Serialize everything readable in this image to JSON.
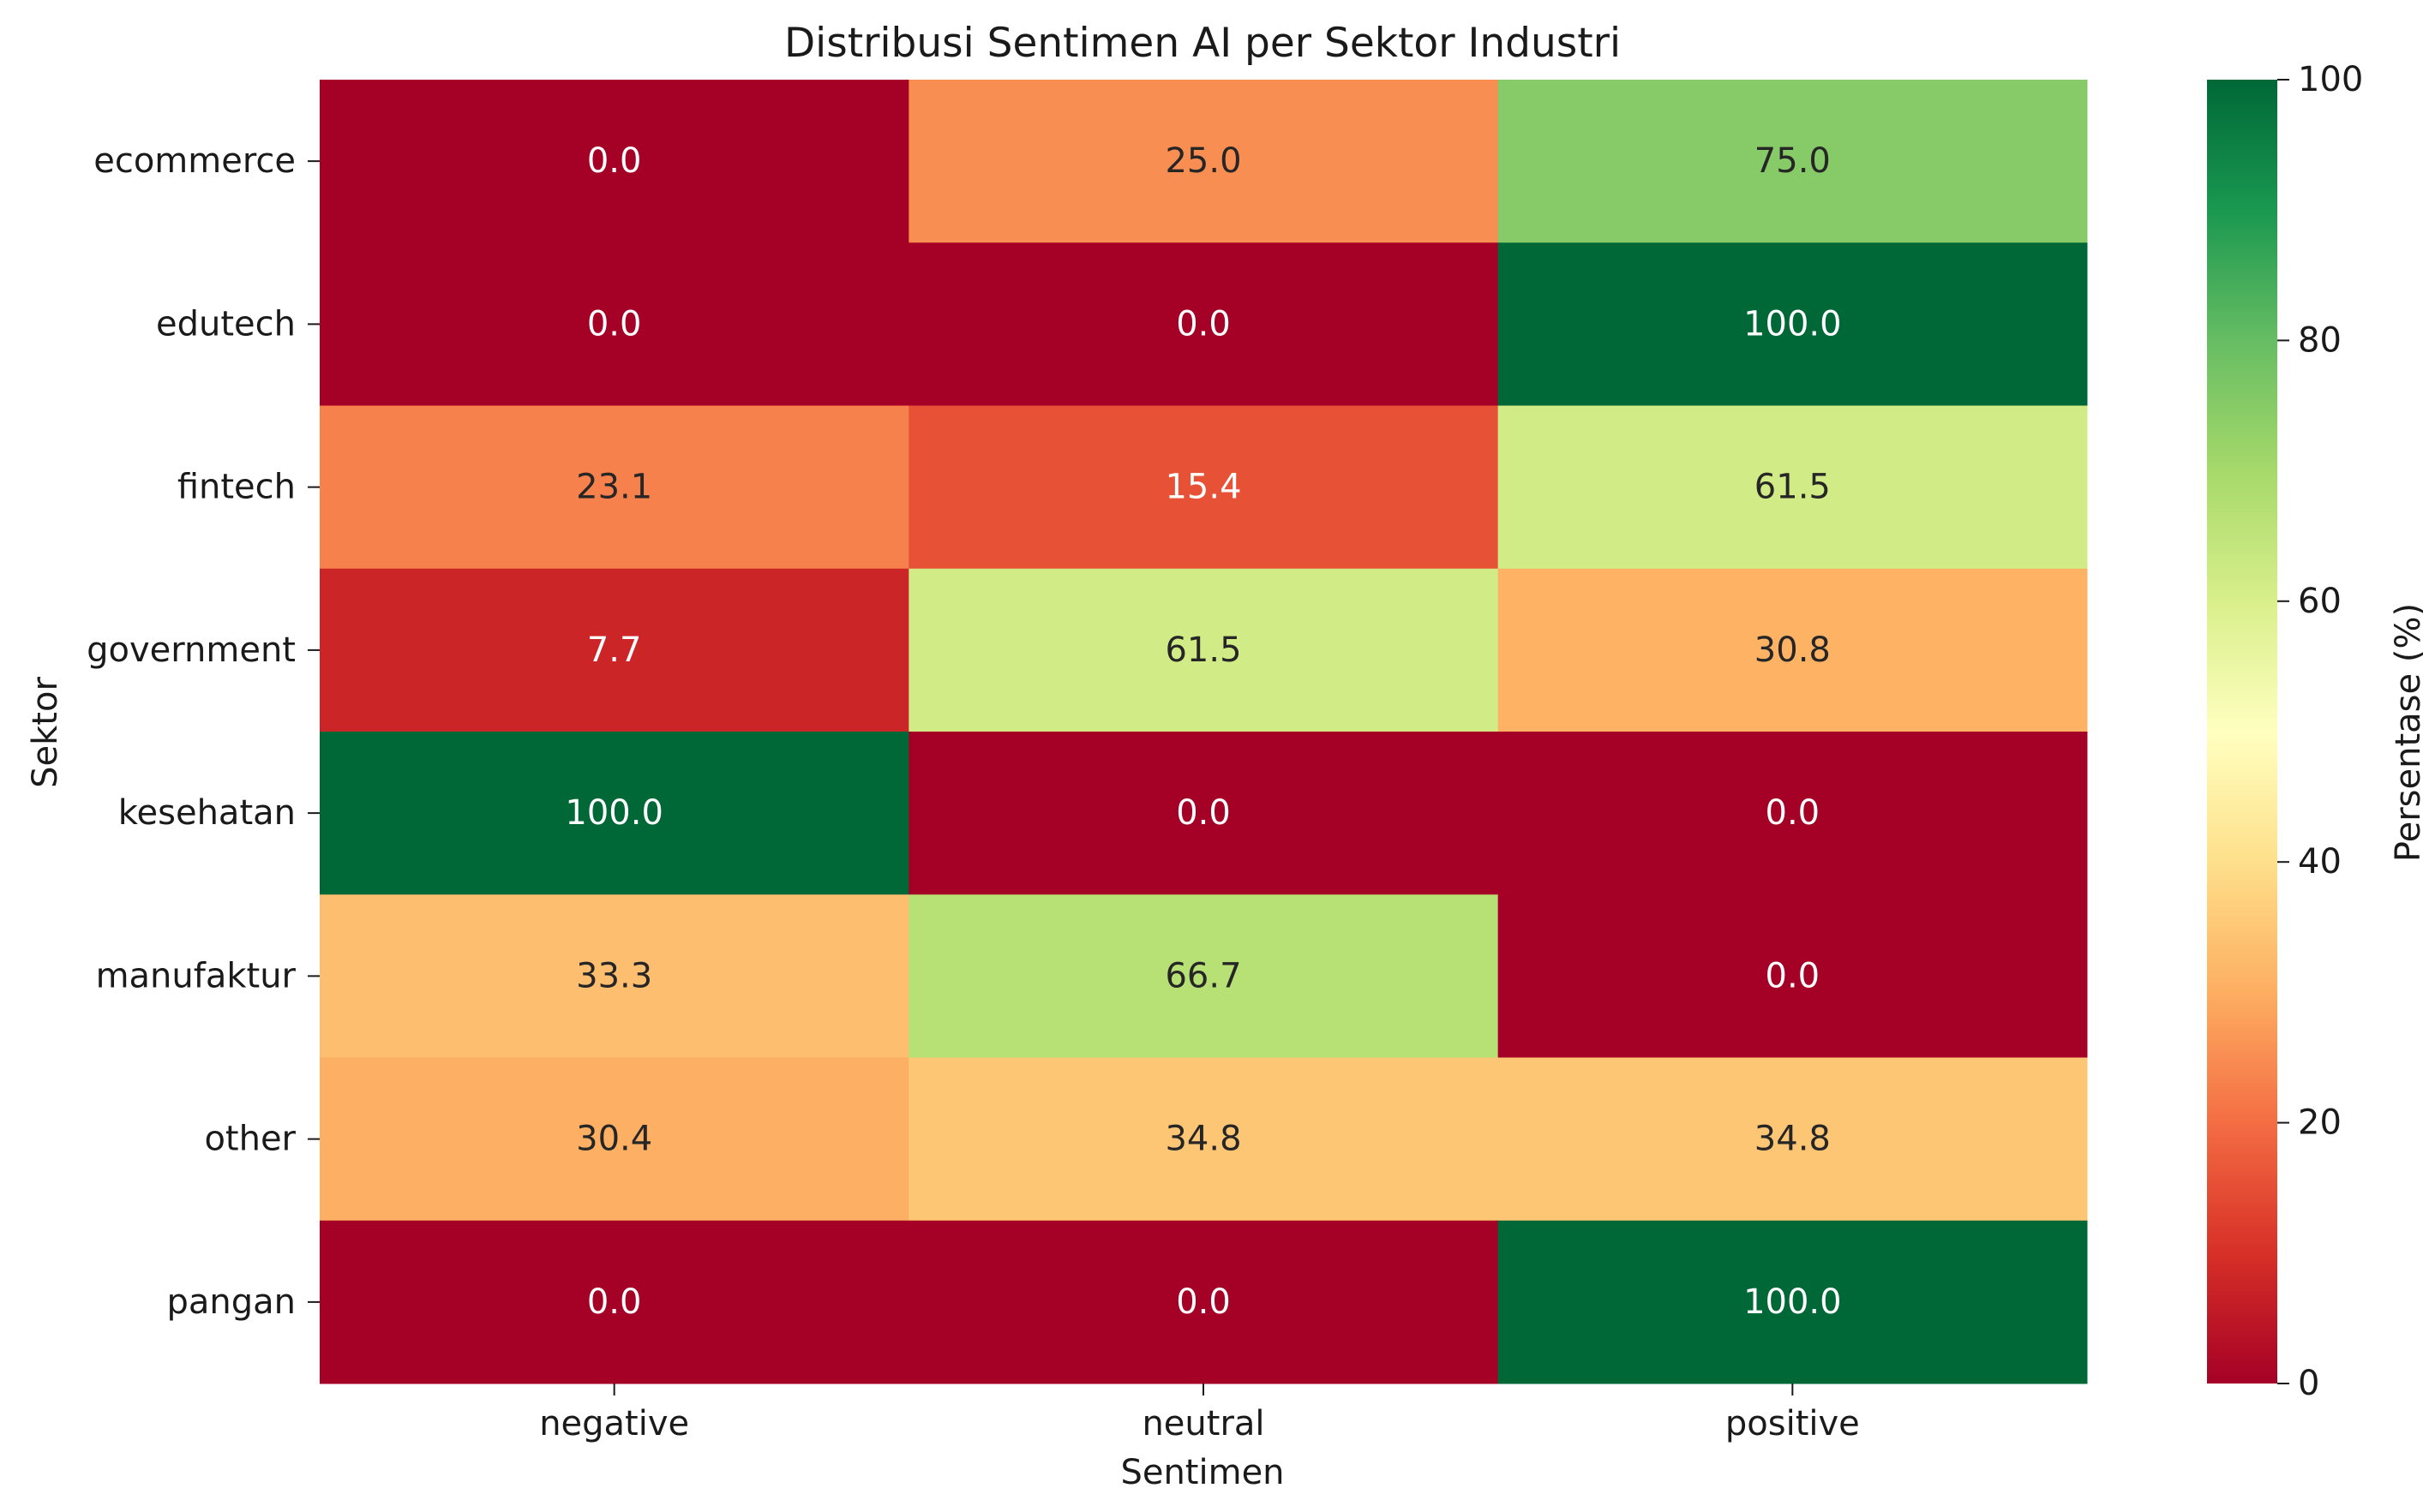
{
  "chart_data": {
    "type": "heatmap",
    "title": "Distribusi Sentimen AI per Sektor Industri",
    "xlabel": "Sentimen",
    "ylabel": "Sektor",
    "colorbar_label": "Persentase (%)",
    "x_categories": [
      "negative",
      "neutral",
      "positive"
    ],
    "y_categories": [
      "ecommerce",
      "edutech",
      "fintech",
      "government",
      "kesehatan",
      "manufaktur",
      "other",
      "pangan"
    ],
    "values": [
      [
        0.0,
        25.0,
        75.0
      ],
      [
        0.0,
        0.0,
        100.0
      ],
      [
        23.1,
        15.4,
        61.5
      ],
      [
        7.7,
        61.5,
        30.8
      ],
      [
        100.0,
        0.0,
        0.0
      ],
      [
        33.3,
        66.7,
        0.0
      ],
      [
        30.4,
        34.8,
        34.8
      ],
      [
        0.0,
        0.0,
        100.0
      ]
    ],
    "value_labels": [
      [
        "0.0",
        "25.0",
        "75.0"
      ],
      [
        "0.0",
        "0.0",
        "100.0"
      ],
      [
        "23.1",
        "15.4",
        "61.5"
      ],
      [
        "7.7",
        "61.5",
        "30.8"
      ],
      [
        "100.0",
        "0.0",
        "0.0"
      ],
      [
        "33.3",
        "66.7",
        "0.0"
      ],
      [
        "30.4",
        "34.8",
        "34.8"
      ],
      [
        "0.0",
        "0.0",
        "100.0"
      ]
    ],
    "colorbar_range": [
      0,
      100
    ],
    "colorbar_ticks": [
      "0",
      "20",
      "40",
      "60",
      "80",
      "100"
    ],
    "colormap": "RdYlGn",
    "grid": false
  }
}
